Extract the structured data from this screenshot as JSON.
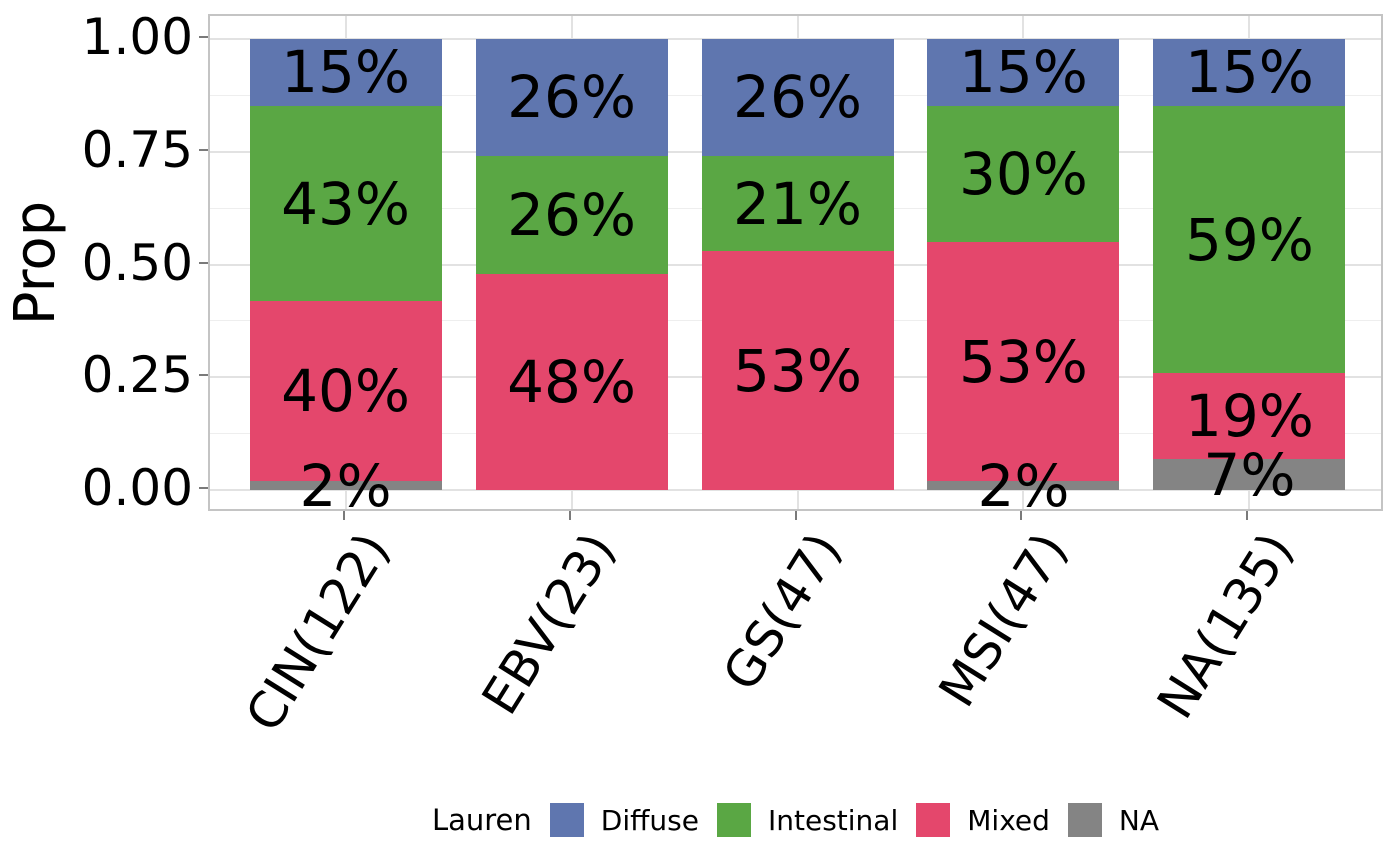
{
  "chart_data": {
    "type": "bar",
    "stacked": true,
    "title": "",
    "xlabel": "",
    "ylabel": "Prop",
    "ylim": [
      0,
      1
    ],
    "y_expansion": 0.05,
    "grid": true,
    "y_major_ticks": [
      0,
      0.25,
      0.5,
      0.75,
      1.0
    ],
    "y_tick_labels": [
      "0.00",
      "0.25",
      "0.50",
      "0.75",
      "1.00"
    ],
    "y_minor_ticks": [
      0.125,
      0.375,
      0.625,
      0.875
    ],
    "categories": [
      "CIN(122)",
      "EBV(23)",
      "GS(47)",
      "MSI(47)",
      "NA(135)"
    ],
    "series": [
      {
        "name": "NA",
        "color": "#848484",
        "values": [
          0.02,
          0,
          0,
          0.02,
          0.07
        ],
        "labels": [
          "2%",
          "",
          "",
          "2%",
          "7%"
        ]
      },
      {
        "name": "Mixed",
        "color": "#e4476c",
        "values": [
          0.4,
          0.48,
          0.53,
          0.53,
          0.19
        ],
        "labels": [
          "40%",
          "48%",
          "53%",
          "53%",
          "19%"
        ]
      },
      {
        "name": "Intestinal",
        "color": "#5aa744",
        "values": [
          0.43,
          0.26,
          0.21,
          0.3,
          0.59
        ],
        "labels": [
          "43%",
          "26%",
          "21%",
          "30%",
          "59%"
        ]
      },
      {
        "name": "Diffuse",
        "color": "#5f76af",
        "values": [
          0.15,
          0.26,
          0.26,
          0.15,
          0.15
        ],
        "labels": [
          "15%",
          "26%",
          "26%",
          "15%",
          "15%"
        ]
      }
    ],
    "legend": {
      "title": "Lauren",
      "position": "bottom",
      "entries": [
        {
          "label": "Diffuse",
          "color": "#5f76af"
        },
        {
          "label": "Intestinal",
          "color": "#5aa744"
        },
        {
          "label": "Mixed",
          "color": "#e4476c"
        },
        {
          "label": "NA",
          "color": "#848484"
        }
      ]
    }
  }
}
